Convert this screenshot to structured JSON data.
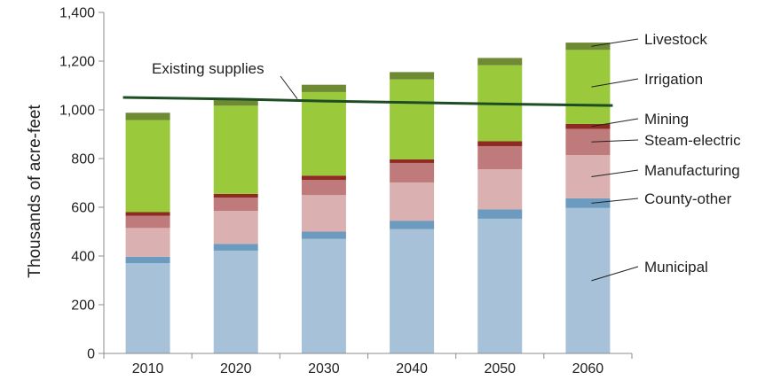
{
  "chart_data": {
    "type": "bar",
    "stacked": true,
    "title": "",
    "xlabel": "",
    "ylabel": "Thousands of acre-feet",
    "ylim": [
      0,
      1400
    ],
    "yticks": [
      0,
      200,
      400,
      600,
      800,
      1000,
      1200,
      1400
    ],
    "ytick_labels": [
      "0",
      "200",
      "400",
      "600",
      "800",
      "1,000",
      "1,200",
      "1,400"
    ],
    "grid": false,
    "legend": "right, labels pointing to the 2060 bar",
    "categories": [
      "2010",
      "2020",
      "2030",
      "2040",
      "2050",
      "2060"
    ],
    "series": [
      {
        "name": "Municipal",
        "color": "#a6c1d8",
        "values": [
          370,
          422,
          470,
          510,
          553,
          597
        ]
      },
      {
        "name": "County-other",
        "color": "#6c9bbf",
        "values": [
          27,
          28,
          30,
          35,
          38,
          40
        ]
      },
      {
        "name": "Manufacturing",
        "color": "#dbb0b0",
        "values": [
          118,
          135,
          150,
          157,
          165,
          177
        ]
      },
      {
        "name": "Steam-electric",
        "color": "#bf7b7b",
        "values": [
          50,
          55,
          62,
          80,
          95,
          108
        ]
      },
      {
        "name": "Mining",
        "color": "#8f2a22",
        "values": [
          15,
          15,
          18,
          15,
          20,
          20
        ]
      },
      {
        "name": "Irrigation",
        "color": "#9bc93c",
        "values": [
          378,
          362,
          343,
          328,
          312,
          304
        ]
      },
      {
        "name": "Livestock",
        "color": "#6e8a33",
        "values": [
          30,
          30,
          30,
          30,
          30,
          30
        ]
      }
    ],
    "line": {
      "name": "Existing supplies",
      "color": "#1e4d23",
      "values": [
        1051,
        1044,
        1036,
        1030,
        1024,
        1018
      ]
    }
  }
}
